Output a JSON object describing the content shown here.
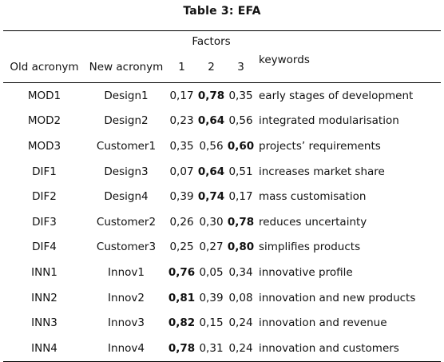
{
  "caption": "Table 3: EFA",
  "header": {
    "factors_group": "Factors",
    "old_acronym": "Old acronym",
    "new_acronym": "New acronym",
    "f1": "1",
    "f2": "2",
    "f3": "3",
    "keywords": "keywords"
  },
  "rows": [
    {
      "old": "MOD1",
      "new": "Design1",
      "f": [
        "0,17",
        "0,78",
        "0,35"
      ],
      "bold": [
        false,
        true,
        false
      ],
      "kw": "early stages of development"
    },
    {
      "old": "MOD2",
      "new": "Design2",
      "f": [
        "0,23",
        "0,64",
        "0,56"
      ],
      "bold": [
        false,
        true,
        false
      ],
      "kw": "integrated modularisation"
    },
    {
      "old": "MOD3",
      "new": "Customer1",
      "f": [
        "0,35",
        "0,56",
        "0,60"
      ],
      "bold": [
        false,
        false,
        true
      ],
      "kw": "projects’ requirements"
    },
    {
      "old": "DIF1",
      "new": "Design3",
      "f": [
        "0,07",
        "0,64",
        "0,51"
      ],
      "bold": [
        false,
        true,
        false
      ],
      "kw": "increases market share"
    },
    {
      "old": "DIF2",
      "new": "Design4",
      "f": [
        "0,39",
        "0,74",
        "0,17"
      ],
      "bold": [
        false,
        true,
        false
      ],
      "kw": "mass customisation"
    },
    {
      "old": "DIF3",
      "new": "Customer2",
      "f": [
        "0,26",
        "0,30",
        "0,78"
      ],
      "bold": [
        false,
        false,
        true
      ],
      "kw": "reduces uncertainty"
    },
    {
      "old": "DIF4",
      "new": "Customer3",
      "f": [
        "0,25",
        "0,27",
        "0,80"
      ],
      "bold": [
        false,
        false,
        true
      ],
      "kw": "simplifies products"
    },
    {
      "old": "INN1",
      "new": "Innov1",
      "f": [
        "0,76",
        "0,05",
        "0,34"
      ],
      "bold": [
        true,
        false,
        false
      ],
      "kw": "innovative profile"
    },
    {
      "old": "INN2",
      "new": "Innov2",
      "f": [
        "0,81",
        "0,39",
        "0,08"
      ],
      "bold": [
        true,
        false,
        false
      ],
      "kw": "innovation and new products"
    },
    {
      "old": "INN3",
      "new": "Innov3",
      "f": [
        "0,82",
        "0,15",
        "0,24"
      ],
      "bold": [
        true,
        false,
        false
      ],
      "kw": "innovation and revenue"
    },
    {
      "old": "INN4",
      "new": "Innov4",
      "f": [
        "0,78",
        "0,31",
        "0,24"
      ],
      "bold": [
        true,
        false,
        false
      ],
      "kw": "innovation and customers"
    }
  ]
}
